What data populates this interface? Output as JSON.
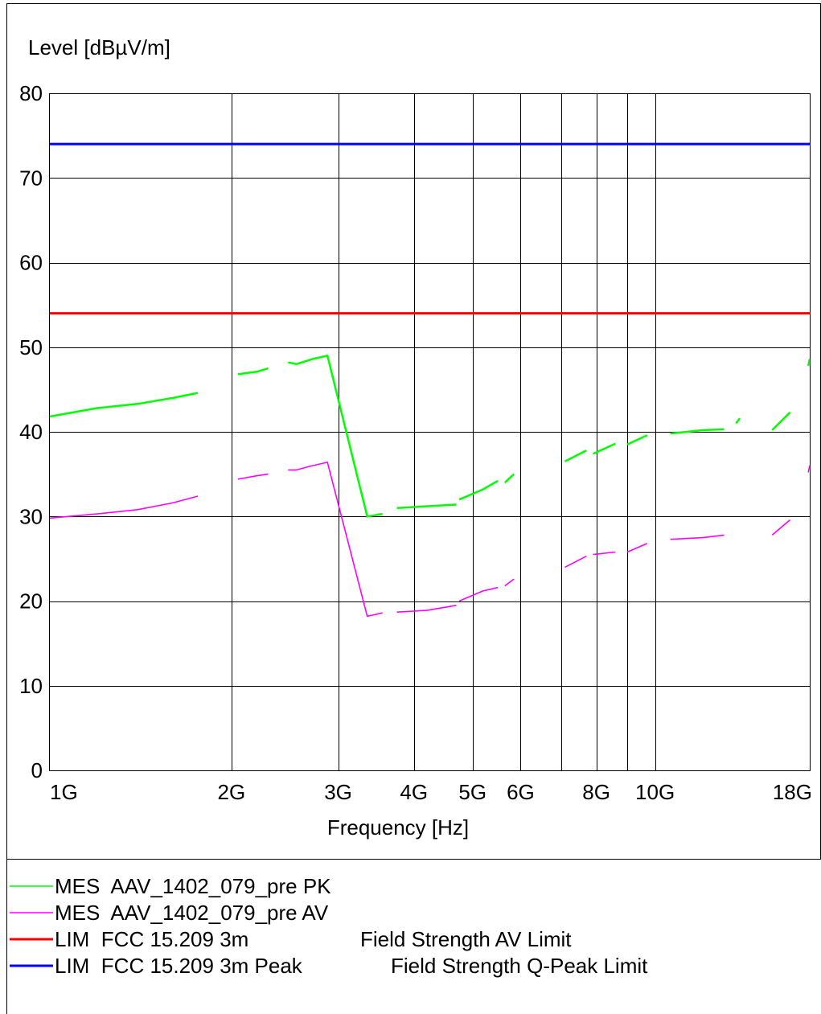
{
  "chart_data": {
    "type": "line",
    "ylabel": "Level [dBµV/m]",
    "xlabel": "Frequency [Hz]",
    "x_scale": "log",
    "xlim": [
      1000000000,
      18000000000
    ],
    "ylim": [
      0,
      80
    ],
    "y_ticks": [
      "0",
      "10",
      "20",
      "30",
      "40",
      "50",
      "60",
      "70",
      "80"
    ],
    "x_ticks": [
      {
        "value": 1000000000,
        "label": "1G"
      },
      {
        "value": 2000000000,
        "label": "2G"
      },
      {
        "value": 3000000000,
        "label": "3G"
      },
      {
        "value": 4000000000,
        "label": "4G"
      },
      {
        "value": 5000000000,
        "label": "5G"
      },
      {
        "value": 6000000000,
        "label": "6G"
      },
      {
        "value": 8000000000,
        "label": "8G"
      },
      {
        "value": 10000000000,
        "label": "10G"
      },
      {
        "value": 18000000000,
        "label": "18G"
      }
    ],
    "x_gridlines": [
      2000000000,
      3000000000,
      4000000000,
      5000000000,
      6000000000,
      7000000000,
      8000000000,
      9000000000,
      10000000000
    ],
    "grid": true,
    "series": [
      {
        "name": "MES  AAV_1402_079_pre PK",
        "color": "#00ff00",
        "segments": [
          {
            "x": [
              1000000000,
              1200000000,
              1400000000,
              1600000000,
              1760000000
            ],
            "y": [
              41.8,
              42.8,
              43.3,
              44.0,
              44.6
            ]
          },
          {
            "x": [
              2050000000,
              2200000000,
              2300000000
            ],
            "y": [
              46.8,
              47.1,
              47.5
            ]
          },
          {
            "x": [
              2480000000,
              2560000000,
              2720000000,
              2880000000,
              3350000000,
              3550000000
            ],
            "y": [
              48.2,
              48.0,
              48.6,
              49.0,
              30.0,
              30.3
            ]
          },
          {
            "x": [
              3750000000,
              4200000000,
              4700000000
            ],
            "y": [
              31.0,
              31.2,
              31.4
            ]
          },
          {
            "x": [
              4750000000,
              5200000000,
              5500000000
            ],
            "y": [
              32.0,
              33.2,
              34.2
            ]
          },
          {
            "x": [
              5650000000,
              5850000000
            ],
            "y": [
              34.0,
              35.0
            ]
          },
          {
            "x": [
              7100000000,
              7700000000
            ],
            "y": [
              36.5,
              37.8
            ]
          },
          {
            "x": [
              7900000000,
              8600000000
            ],
            "y": [
              37.4,
              38.6
            ]
          },
          {
            "x": [
              9000000000,
              9700000000
            ],
            "y": [
              38.5,
              39.6
            ]
          },
          {
            "x": [
              10600000000,
              12000000000,
              13000000000
            ],
            "y": [
              39.8,
              40.2,
              40.3
            ]
          },
          {
            "x": [
              13600000000,
              13800000000
            ],
            "y": [
              41.0,
              41.6
            ]
          },
          {
            "x": [
              15600000000,
              16700000000
            ],
            "y": [
              40.2,
              42.3
            ]
          },
          {
            "x": [
              17900000000,
              18000000000
            ],
            "y": [
              47.8,
              48.6
            ]
          }
        ]
      },
      {
        "name": "MES  AAV_1402_079_pre AV",
        "color": "#ff00ff",
        "segments": [
          {
            "x": [
              1000000000,
              1200000000,
              1400000000,
              1600000000,
              1760000000
            ],
            "y": [
              29.8,
              30.3,
              30.8,
              31.6,
              32.4
            ]
          },
          {
            "x": [
              2050000000,
              2200000000,
              2300000000
            ],
            "y": [
              34.4,
              34.8,
              35.0
            ]
          },
          {
            "x": [
              2480000000,
              2560000000,
              2720000000,
              2880000000,
              3350000000,
              3550000000
            ],
            "y": [
              35.5,
              35.5,
              36.0,
              36.4,
              18.2,
              18.6
            ]
          },
          {
            "x": [
              3750000000,
              4200000000,
              4700000000
            ],
            "y": [
              18.7,
              18.9,
              19.5
            ]
          },
          {
            "x": [
              4750000000,
              5200000000,
              5500000000
            ],
            "y": [
              20.0,
              21.2,
              21.6
            ]
          },
          {
            "x": [
              5650000000,
              5850000000
            ],
            "y": [
              21.8,
              22.6
            ]
          },
          {
            "x": [
              7100000000,
              7700000000
            ],
            "y": [
              24.0,
              25.3
            ]
          },
          {
            "x": [
              7900000000,
              8600000000
            ],
            "y": [
              25.5,
              25.8
            ]
          },
          {
            "x": [
              9000000000,
              9700000000
            ],
            "y": [
              25.8,
              26.8
            ]
          },
          {
            "x": [
              10600000000,
              12000000000,
              13000000000
            ],
            "y": [
              27.3,
              27.5,
              27.8
            ]
          },
          {
            "x": [
              15600000000,
              16700000000
            ],
            "y": [
              27.8,
              29.6
            ]
          },
          {
            "x": [
              17900000000,
              18000000000
            ],
            "y": [
              35.2,
              36.0
            ]
          }
        ]
      },
      {
        "name": "LIM  FCC 15.209 3m",
        "description": "Field Strength AV Limit",
        "color": "#ff0000",
        "segments": [
          {
            "x": [
              1000000000,
              18000000000
            ],
            "y": [
              54,
              54
            ]
          }
        ]
      },
      {
        "name": "LIM  FCC 15.209 3m Peak",
        "description": "Field Strength Q-Peak Limit",
        "color": "#0000ff",
        "segments": [
          {
            "x": [
              1000000000,
              18000000000
            ],
            "y": [
              74,
              74
            ]
          }
        ]
      }
    ]
  },
  "legend": {
    "placement": "bottom",
    "entries": [
      {
        "label": "MES  AAV_1402_079_pre PK",
        "description": "",
        "color": "#00ff00"
      },
      {
        "label": "MES  AAV_1402_079_pre AV",
        "description": "",
        "color": "#ff00ff"
      },
      {
        "label": "LIM  FCC 15.209 3m",
        "description": "Field Strength AV Limit",
        "color": "#ff0000"
      },
      {
        "label": "LIM  FCC 15.209 3m Peak",
        "description": "Field Strength Q-Peak Limit",
        "color": "#0000ff"
      }
    ]
  }
}
